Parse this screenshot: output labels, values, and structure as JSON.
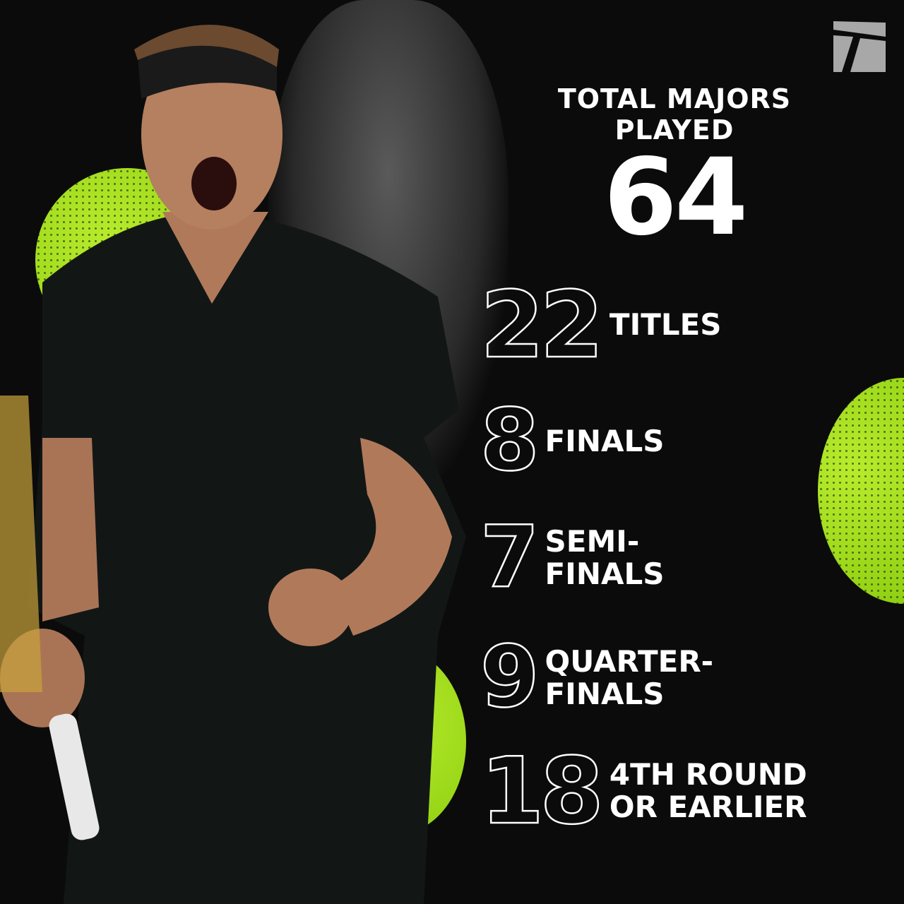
{
  "colors": {
    "background": "#0b0b0b",
    "accent": "#a6e01f",
    "text": "#ffffff",
    "logo": "#a8a8a8"
  },
  "logo": {
    "icon": "tennis-channel-logo",
    "text": "T"
  },
  "heading": {
    "line1": "TOTAL MAJORS",
    "line2": "PLAYED"
  },
  "total": "64",
  "stats": [
    {
      "value": "22",
      "label1": "TITLES",
      "label2": ""
    },
    {
      "value": "8",
      "label1": "FINALS",
      "label2": ""
    },
    {
      "value": "7",
      "label1": "SEMI-",
      "label2": "FINALS"
    },
    {
      "value": "9",
      "label1": "QUARTER-",
      "label2": "FINALS"
    },
    {
      "value": "18",
      "label1": "4TH ROUND",
      "label2": "OR EARLIER"
    }
  ]
}
